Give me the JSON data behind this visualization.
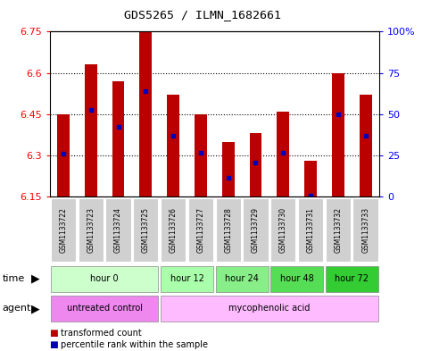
{
  "title": "GDS5265 / ILMN_1682661",
  "samples": [
    "GSM1133722",
    "GSM1133723",
    "GSM1133724",
    "GSM1133725",
    "GSM1133726",
    "GSM1133727",
    "GSM1133728",
    "GSM1133729",
    "GSM1133730",
    "GSM1133731",
    "GSM1133732",
    "GSM1133733"
  ],
  "bar_values": [
    6.45,
    6.63,
    6.57,
    6.75,
    6.52,
    6.45,
    6.35,
    6.38,
    6.46,
    6.28,
    6.6,
    6.52
  ],
  "bar_base": 6.15,
  "percentile_values": [
    6.305,
    6.465,
    6.405,
    6.535,
    6.37,
    6.31,
    6.22,
    6.275,
    6.31,
    6.155,
    6.45,
    6.37
  ],
  "ylim_min": 6.15,
  "ylim_max": 6.75,
  "yticks_left": [
    6.15,
    6.3,
    6.45,
    6.6,
    6.75
  ],
  "yticks_right_vals": [
    0,
    25,
    50,
    75,
    100
  ],
  "bar_color": "#bb0000",
  "percentile_color": "#0000bb",
  "time_groups": [
    {
      "label": "hour 0",
      "start": 0,
      "end": 4,
      "color": "#ccffcc"
    },
    {
      "label": "hour 12",
      "start": 4,
      "end": 6,
      "color": "#aaffaa"
    },
    {
      "label": "hour 24",
      "start": 6,
      "end": 8,
      "color": "#88ee88"
    },
    {
      "label": "hour 48",
      "start": 8,
      "end": 10,
      "color": "#55dd55"
    },
    {
      "label": "hour 72",
      "start": 10,
      "end": 12,
      "color": "#33cc33"
    }
  ],
  "agent_groups": [
    {
      "label": "untreated control",
      "start": 0,
      "end": 4,
      "color": "#ee88ee"
    },
    {
      "label": "mycophenolic acid",
      "start": 4,
      "end": 12,
      "color": "#ffbbff"
    }
  ],
  "legend_red_label": "transformed count",
  "legend_blue_label": "percentile rank within the sample",
  "legend_red_color": "#bb0000",
  "legend_blue_color": "#0000bb"
}
